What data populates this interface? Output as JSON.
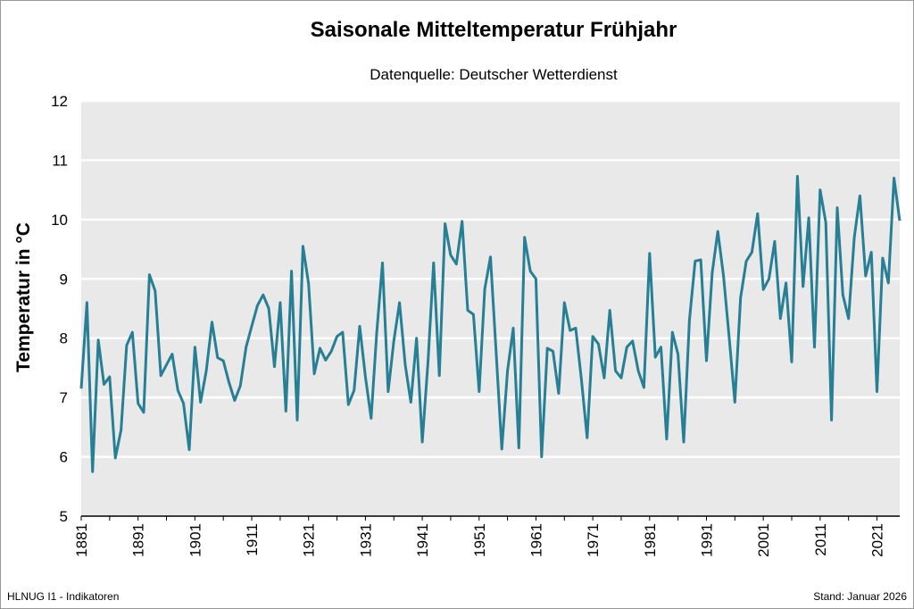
{
  "chart_data": {
    "type": "line",
    "title": "Saisonale Mitteltemperatur Frühjahr",
    "subtitle": "Datenquelle: Deutscher Wetterdienst",
    "xlabel": "",
    "ylabel": "Temperatur in °C",
    "xlim": [
      1881,
      2025
    ],
    "ylim": [
      5,
      12
    ],
    "yticks": [
      "5",
      "6",
      "7",
      "8",
      "9",
      "10",
      "11",
      "12"
    ],
    "xticks": [
      "1881",
      "1891",
      "1901",
      "1911",
      "1921",
      "1931",
      "1941",
      "1951",
      "1961",
      "1971",
      "1981",
      "1991",
      "2001",
      "2011",
      "2021"
    ],
    "grid": true,
    "line_color": "#267f94",
    "series": [
      {
        "name": "Frühjahr",
        "start_year": 1881,
        "values": [
          7.15,
          8.6,
          5.75,
          7.97,
          7.22,
          7.35,
          5.98,
          6.45,
          7.88,
          8.1,
          6.9,
          6.75,
          9.07,
          8.8,
          7.37,
          7.55,
          7.73,
          7.12,
          6.9,
          6.12,
          7.85,
          6.92,
          7.45,
          8.27,
          7.67,
          7.62,
          7.25,
          6.95,
          7.2,
          7.85,
          8.2,
          8.55,
          8.73,
          8.5,
          7.52,
          8.6,
          6.77,
          9.13,
          6.62,
          9.55,
          8.92,
          7.4,
          7.83,
          7.63,
          7.78,
          8.03,
          8.1,
          6.88,
          7.12,
          8.2,
          7.35,
          6.65,
          8.1,
          9.27,
          7.1,
          7.95,
          8.6,
          7.55,
          6.92,
          8.0,
          6.25,
          7.6,
          9.27,
          7.37,
          9.93,
          9.4,
          9.25,
          9.97,
          8.47,
          8.4,
          7.1,
          8.83,
          9.37,
          7.75,
          6.13,
          7.45,
          8.17,
          6.15,
          9.7,
          9.13,
          9.0,
          6.0,
          7.83,
          7.78,
          7.07,
          8.6,
          8.13,
          8.17,
          7.3,
          6.32,
          8.03,
          7.9,
          7.33,
          8.47,
          7.45,
          7.33,
          7.85,
          7.95,
          7.45,
          7.17,
          9.43,
          7.68,
          7.85,
          6.3,
          8.1,
          7.73,
          6.25,
          8.3,
          9.3,
          9.32,
          7.62,
          9.1,
          9.8,
          9.05,
          8.0,
          6.92,
          8.68,
          9.3,
          9.45,
          10.1,
          8.82,
          9.0,
          9.63,
          8.33,
          8.93,
          7.6,
          10.73,
          8.87,
          10.03,
          7.85,
          10.5,
          9.95,
          6.62,
          10.2,
          8.73,
          8.33,
          9.7,
          10.4,
          9.05,
          9.45,
          7.1,
          9.35,
          8.93,
          10.7,
          9.98
        ]
      }
    ]
  },
  "footer": {
    "left": "HLNUG I1 - Indikatoren",
    "right": "Stand: Januar 2026"
  }
}
